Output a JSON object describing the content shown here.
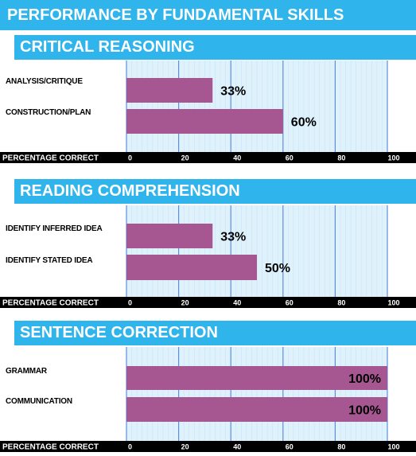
{
  "title": "PERFORMANCE BY FUNDAMENTAL SKILLS",
  "colors": {
    "header_bg": "#2fb4ec",
    "bar": "#a65791",
    "plot_bg": "#dff2fc",
    "gridline": "#5b8fe0",
    "axis_bar": "#000000"
  },
  "sections": [
    {
      "heading": "CRITICAL REASONING",
      "axis_title": "PERCENTAGE CORRECT"
    },
    {
      "heading": "READING COMPREHENSION",
      "axis_title": "PERCENTAGE CORRECT"
    },
    {
      "heading": "SENTENCE CORRECTION",
      "axis_title": "PERCENTAGE CORRECT"
    }
  ],
  "chart_data": [
    {
      "type": "bar",
      "title": "CRITICAL REASONING",
      "orientation": "horizontal",
      "categories": [
        "ANALYSIS/CRITIQUE",
        "CONSTRUCTION/PLAN"
      ],
      "values": [
        33,
        60
      ],
      "value_labels": [
        "33%",
        "60%"
      ],
      "xlabel": "PERCENTAGE CORRECT",
      "xlim": [
        0,
        100
      ],
      "xticks": [
        "0",
        "20",
        "40",
        "60",
        "80",
        "100"
      ],
      "grid": true
    },
    {
      "type": "bar",
      "title": "READING COMPREHENSION",
      "orientation": "horizontal",
      "categories": [
        "IDENTIFY INFERRED IDEA",
        "IDENTIFY STATED IDEA"
      ],
      "values": [
        33,
        50
      ],
      "value_labels": [
        "33%",
        "50%"
      ],
      "xlabel": "PERCENTAGE CORRECT",
      "xlim": [
        0,
        100
      ],
      "xticks": [
        "0",
        "20",
        "40",
        "60",
        "80",
        "100"
      ],
      "grid": true
    },
    {
      "type": "bar",
      "title": "SENTENCE CORRECTION",
      "orientation": "horizontal",
      "categories": [
        "GRAMMAR",
        "COMMUNICATION"
      ],
      "values": [
        100,
        100
      ],
      "value_labels": [
        "100%",
        "100%"
      ],
      "xlabel": "PERCENTAGE CORRECT",
      "xlim": [
        0,
        100
      ],
      "xticks": [
        "0",
        "20",
        "40",
        "60",
        "80",
        "100"
      ],
      "grid": true
    }
  ]
}
